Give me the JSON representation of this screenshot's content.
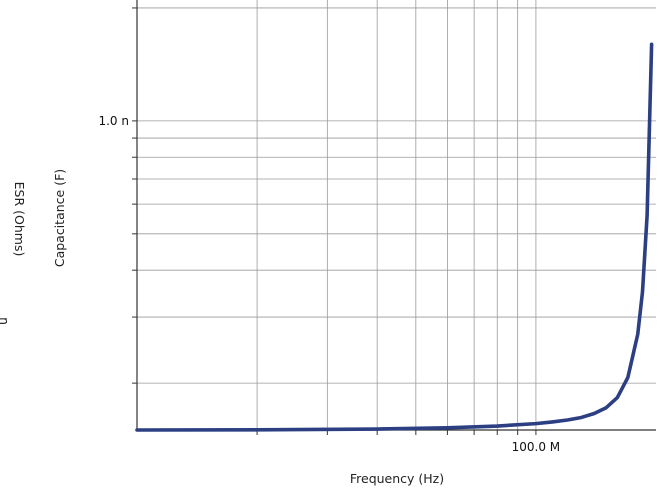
{
  "chart_data": {
    "type": "line",
    "title": "",
    "xlabel": "Frequency (Hz)",
    "ylabel": "Capacitance (F)",
    "y2label": "ESR (Ohms)",
    "y2_partial_tick": "n",
    "x_scale": "log",
    "y_scale": "log",
    "xlim": [
      10000000,
      200000000
    ],
    "ylim": [
      1.5e-10,
      2.1e-09
    ],
    "x_ticks": [
      {
        "value": 100000000,
        "label": "100.0 M"
      }
    ],
    "y_ticks": [
      {
        "value": 1e-09,
        "label": "1.0 n"
      }
    ],
    "grid": true,
    "series": [
      {
        "color": "#2b3f82",
        "x": [
          10000000,
          20000000,
          40000000,
          60000000,
          80000000,
          100000000,
          110000000,
          120000000,
          130000000,
          140000000,
          150000000,
          160000000,
          170000000,
          180000000,
          185000000,
          190000000,
          195000000
        ],
        "y": [
          1.5e-10,
          1.502e-10,
          1.509e-10,
          1.52e-10,
          1.537e-10,
          1.56e-10,
          1.576e-10,
          1.595e-10,
          1.62e-10,
          1.66e-10,
          1.72e-10,
          1.83e-10,
          2.07e-10,
          2.7e-10,
          3.5e-10,
          5.6e-10,
          1.6e-09
        ]
      }
    ]
  }
}
